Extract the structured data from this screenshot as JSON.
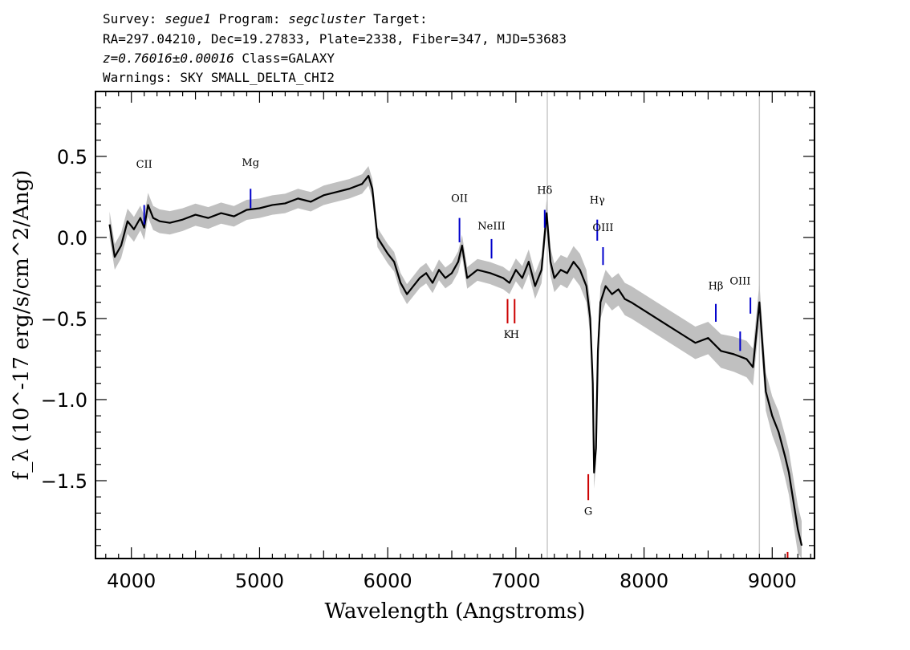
{
  "header": {
    "line1": {
      "a": "Survey: ",
      "survey": "segue1",
      "b": " Program: ",
      "program": "segcluster",
      "c": " Target:"
    },
    "line2": "RA=297.04210, Dec=19.27833, Plate=2338, Fiber=347, MJD=53683",
    "line3": {
      "z": "z=0.76016±0.00016",
      "cls": " Class=GALAXY"
    },
    "line4": "Warnings: SKY SMALL_DELTA_CHI2"
  },
  "colors": {
    "spectrum": "#000000",
    "error_band": "#c0c0c0",
    "emission_marker": "#0000cc",
    "absorption_marker": "#cc0000",
    "sky_line": "#c8c8c8"
  },
  "chart_data": {
    "type": "line",
    "title": "",
    "xlabel": "Wavelength (Angstroms)",
    "ylabel": "f_λ (10^-17 erg/s/cm^2/Ang)",
    "xlim": [
      3720,
      9330
    ],
    "ylim": [
      -1.98,
      0.9
    ],
    "xticks": [
      4000,
      5000,
      6000,
      7000,
      8000,
      9000
    ],
    "yticks": [
      0.5,
      0.0,
      -0.5,
      -1.0,
      -1.5
    ],
    "ytick_labels": [
      "0.5",
      "0.0",
      "−0.5",
      "−1.0",
      "−1.5"
    ],
    "grid": false,
    "legend": "none",
    "sky_lines": [
      7245,
      8900
    ],
    "series": [
      {
        "name": "flux",
        "x": [
          3830,
          3870,
          3920,
          3970,
          4020,
          4070,
          4100,
          4130,
          4170,
          4220,
          4300,
          4400,
          4500,
          4600,
          4700,
          4800,
          4900,
          5000,
          5100,
          5200,
          5300,
          5400,
          5500,
          5600,
          5700,
          5800,
          5850,
          5880,
          5920,
          5960,
          6000,
          6050,
          6100,
          6150,
          6200,
          6250,
          6300,
          6350,
          6400,
          6450,
          6500,
          6550,
          6580,
          6620,
          6700,
          6800,
          6900,
          6950,
          7000,
          7050,
          7100,
          7150,
          7200,
          7240,
          7270,
          7300,
          7350,
          7400,
          7450,
          7500,
          7550,
          7580,
          7600,
          7610,
          7625,
          7640,
          7660,
          7700,
          7750,
          7800,
          7850,
          7900,
          8000,
          8100,
          8200,
          8300,
          8400,
          8500,
          8600,
          8700,
          8800,
          8850,
          8900,
          8950,
          9000,
          9050,
          9100,
          9130,
          9160,
          9200,
          9230
        ],
        "y": [
          0.08,
          -0.12,
          -0.05,
          0.1,
          0.05,
          0.12,
          0.06,
          0.2,
          0.12,
          0.1,
          0.09,
          0.11,
          0.14,
          0.12,
          0.15,
          0.13,
          0.17,
          0.18,
          0.2,
          0.21,
          0.24,
          0.22,
          0.26,
          0.28,
          0.3,
          0.33,
          0.38,
          0.3,
          0.0,
          -0.05,
          -0.1,
          -0.15,
          -0.28,
          -0.35,
          -0.3,
          -0.25,
          -0.22,
          -0.28,
          -0.2,
          -0.25,
          -0.22,
          -0.15,
          -0.05,
          -0.25,
          -0.2,
          -0.22,
          -0.25,
          -0.28,
          -0.2,
          -0.25,
          -0.15,
          -0.3,
          -0.2,
          0.15,
          -0.15,
          -0.25,
          -0.2,
          -0.22,
          -0.15,
          -0.2,
          -0.3,
          -0.5,
          -0.9,
          -1.45,
          -1.3,
          -0.7,
          -0.4,
          -0.3,
          -0.35,
          -0.32,
          -0.38,
          -0.4,
          -0.45,
          -0.5,
          -0.55,
          -0.6,
          -0.65,
          -0.62,
          -0.7,
          -0.72,
          -0.75,
          -0.8,
          -0.4,
          -0.95,
          -1.1,
          -1.2,
          -1.35,
          -1.45,
          -1.6,
          -1.8,
          -1.9
        ]
      },
      {
        "name": "error_halfwidth",
        "x": [
          3830,
          5000,
          6000,
          7000,
          7500,
          8000,
          8500,
          9000,
          9230
        ],
        "y": [
          0.08,
          0.06,
          0.06,
          0.07,
          0.1,
          0.1,
          0.1,
          0.12,
          0.15
        ]
      }
    ],
    "line_markers": [
      {
        "label": "CII",
        "kind": "emission",
        "x": 4100,
        "y_start": 0.2,
        "y_end": 0.08,
        "label_y": 0.43
      },
      {
        "label": "Mg",
        "kind": "emission",
        "x": 4930,
        "y_start": 0.3,
        "y_end": 0.18,
        "label_y": 0.44
      },
      {
        "label": "OII",
        "kind": "emission",
        "x": 6560,
        "y_start": 0.12,
        "y_end": -0.03,
        "label_y": 0.22
      },
      {
        "label": "NeIII",
        "kind": "emission",
        "x": 6810,
        "y_start": -0.01,
        "y_end": -0.13,
        "label_y": 0.05
      },
      {
        "label": "Hδ",
        "kind": "emission",
        "x": 7225,
        "y_start": 0.17,
        "y_end": 0.06,
        "label_y": 0.27
      },
      {
        "label": "Hγ",
        "kind": "emission",
        "x": 7635,
        "y_start": 0.11,
        "y_end": -0.02,
        "label_y": 0.21
      },
      {
        "label": "OIII",
        "kind": "emission",
        "x": 7680,
        "y_start": -0.06,
        "y_end": -0.17,
        "label_y": 0.04
      },
      {
        "label": "Hβ",
        "kind": "emission",
        "x": 8560,
        "y_start": -0.41,
        "y_end": -0.52,
        "label_y": -0.32
      },
      {
        "label": "OIII",
        "kind": "emission",
        "x": 8750,
        "y_start": -0.58,
        "y_end": -0.7,
        "label_y": -0.29
      },
      {
        "label": "OIII",
        "kind": "emission",
        "x": 8830,
        "y_start": -0.37,
        "y_end": -0.47,
        "label_y": null
      },
      {
        "label": "K",
        "kind": "absorption",
        "x": 6935,
        "y_start": -0.38,
        "y_end": -0.53,
        "label_y": -0.62
      },
      {
        "label": "H",
        "kind": "absorption",
        "x": 6990,
        "y_start": -0.38,
        "y_end": -0.53,
        "label_y": -0.62
      },
      {
        "label": "G",
        "kind": "absorption",
        "x": 7565,
        "y_start": -1.46,
        "y_end": -1.62,
        "label_y": -1.71
      },
      {
        "label": "",
        "kind": "absorption",
        "x": 9120,
        "y_start": -1.94,
        "y_end": -1.98,
        "label_y": null
      }
    ]
  }
}
